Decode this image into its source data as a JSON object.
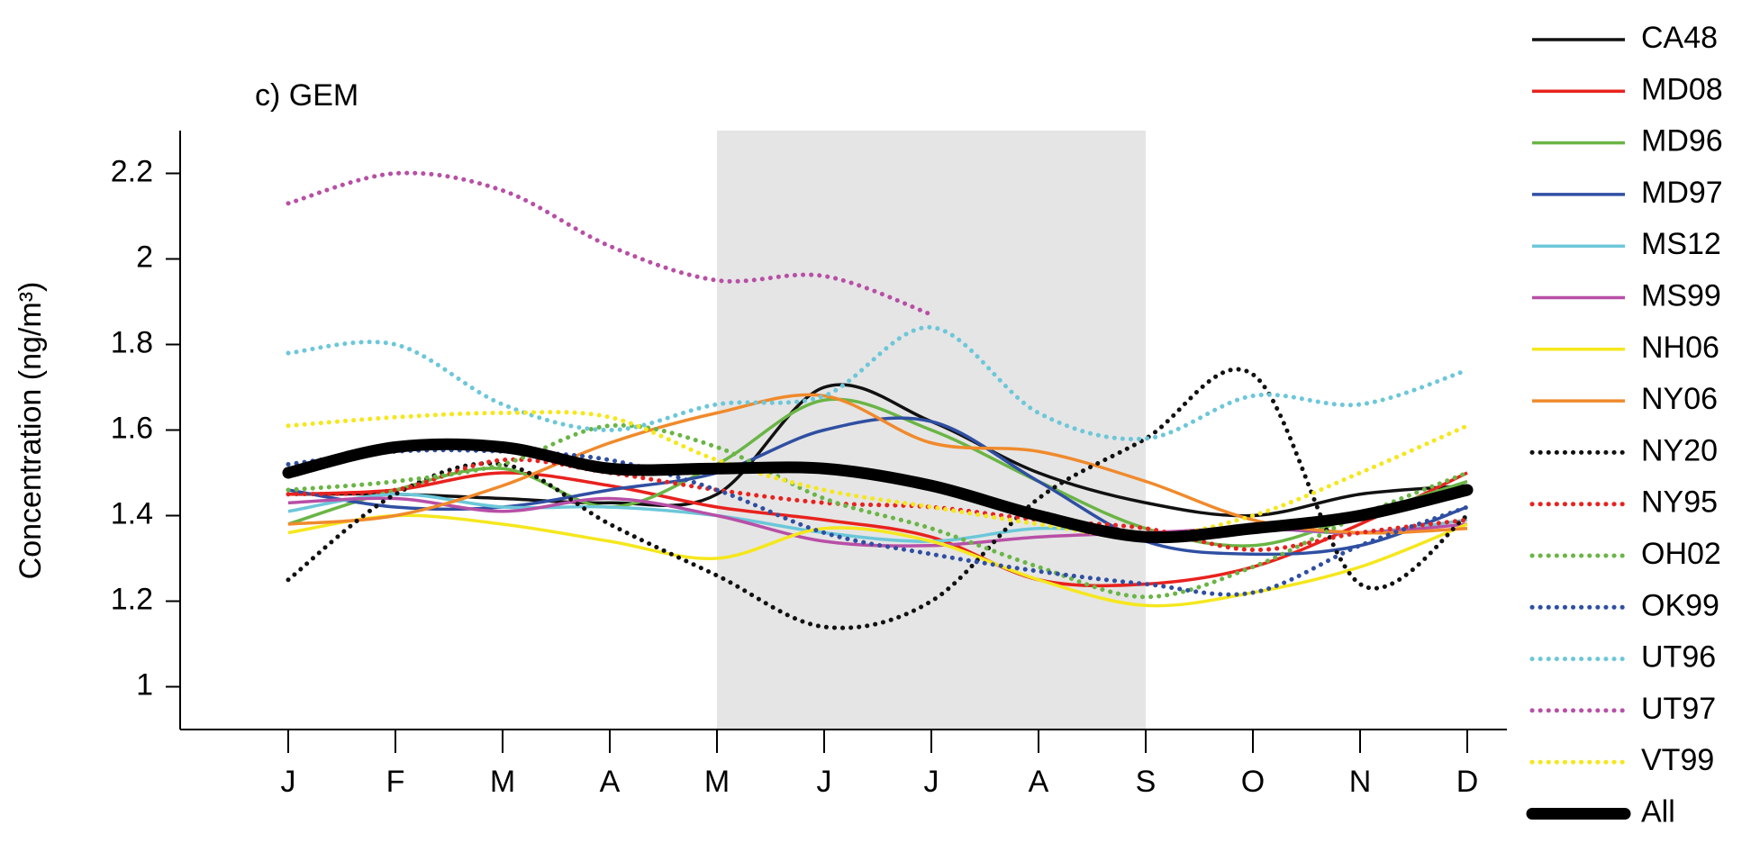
{
  "chart_data": {
    "type": "line",
    "title": "c) GEM",
    "y_label": "Concentration (ng/m³)",
    "categories": [
      "J",
      "F",
      "M",
      "A",
      "M",
      "J",
      "J",
      "A",
      "S",
      "O",
      "N",
      "D"
    ],
    "ylim": [
      0.9,
      2.3
    ],
    "yticks": [
      1.0,
      1.2,
      1.4,
      1.6,
      1.8,
      2.0,
      2.2
    ],
    "shaded": [
      4,
      8
    ],
    "shade_color": "#e5e5e5",
    "legend": "right",
    "series": [
      {
        "name": "CA48",
        "color": "#111111",
        "style": "solid",
        "values": [
          1.45,
          1.45,
          1.44,
          1.43,
          1.45,
          1.7,
          1.62,
          1.5,
          1.43,
          1.4,
          1.45,
          1.47
        ]
      },
      {
        "name": "MD08",
        "color": "#e8221e",
        "style": "solid",
        "values": [
          1.45,
          1.46,
          1.5,
          1.47,
          1.42,
          1.39,
          1.35,
          1.25,
          1.24,
          1.28,
          1.38,
          1.5
        ]
      },
      {
        "name": "MD96",
        "color": "#6ab545",
        "style": "solid",
        "values": [
          1.38,
          1.46,
          1.51,
          1.42,
          1.52,
          1.67,
          1.6,
          1.48,
          1.37,
          1.33,
          1.4,
          1.48
        ]
      },
      {
        "name": "MD97",
        "color": "#2f4fa2",
        "style": "solid",
        "values": [
          1.46,
          1.42,
          1.42,
          1.46,
          1.5,
          1.6,
          1.62,
          1.48,
          1.34,
          1.31,
          1.33,
          1.42
        ]
      },
      {
        "name": "MS12",
        "color": "#6cc7d9",
        "style": "solid",
        "values": [
          1.41,
          1.45,
          1.42,
          1.42,
          1.4,
          1.36,
          1.34,
          1.37,
          1.36,
          1.37,
          1.36,
          1.39
        ]
      },
      {
        "name": "MS99",
        "color": "#b84fa6",
        "style": "solid",
        "values": [
          1.43,
          1.44,
          1.41,
          1.44,
          1.4,
          1.34,
          1.33,
          1.35,
          1.36,
          1.37,
          1.36,
          1.38
        ]
      },
      {
        "name": "NH06",
        "color": "#f5e71d",
        "style": "solid",
        "values": [
          1.36,
          1.4,
          1.38,
          1.34,
          1.3,
          1.37,
          1.34,
          1.25,
          1.19,
          1.22,
          1.28,
          1.38
        ]
      },
      {
        "name": "NY06",
        "color": "#f08a2c",
        "style": "solid",
        "values": [
          1.38,
          1.4,
          1.47,
          1.57,
          1.64,
          1.68,
          1.57,
          1.55,
          1.48,
          1.39,
          1.36,
          1.37
        ]
      },
      {
        "name": "NY20",
        "color": "#111111",
        "style": "dotted",
        "values": [
          1.25,
          1.45,
          1.52,
          1.38,
          1.26,
          1.14,
          1.2,
          1.44,
          1.58,
          1.73,
          1.24,
          1.4
        ]
      },
      {
        "name": "NY95",
        "color": "#e8221e",
        "style": "dotted",
        "values": [
          1.45,
          1.46,
          1.53,
          1.5,
          1.46,
          1.43,
          1.42,
          1.39,
          1.37,
          1.32,
          1.36,
          1.39
        ]
      },
      {
        "name": "OH02",
        "color": "#6ab545",
        "style": "dotted",
        "values": [
          1.46,
          1.48,
          1.52,
          1.61,
          1.56,
          1.44,
          1.37,
          1.28,
          1.21,
          1.28,
          1.4,
          1.5
        ]
      },
      {
        "name": "OK99",
        "color": "#2f4fa2",
        "style": "dotted",
        "values": [
          1.52,
          1.55,
          1.55,
          1.53,
          1.46,
          1.36,
          1.31,
          1.27,
          1.24,
          1.22,
          1.33,
          1.42
        ]
      },
      {
        "name": "UT96",
        "color": "#6cc7d9",
        "style": "dotted",
        "values": [
          1.78,
          1.8,
          1.66,
          1.6,
          1.66,
          1.68,
          1.84,
          1.64,
          1.58,
          1.68,
          1.66,
          1.74
        ]
      },
      {
        "name": "UT97",
        "color": "#b84fa6",
        "style": "dotted",
        "values": [
          2.13,
          2.2,
          2.16,
          2.03,
          1.95,
          1.96,
          1.87,
          null,
          null,
          null,
          null,
          null
        ]
      },
      {
        "name": "VT99",
        "color": "#f5e71d",
        "style": "dotted",
        "values": [
          1.61,
          1.63,
          1.64,
          1.63,
          1.53,
          1.46,
          1.42,
          1.38,
          1.35,
          1.4,
          1.5,
          1.61
        ]
      },
      {
        "name": "All",
        "color": "#000000",
        "style": "bold",
        "values": [
          1.5,
          1.56,
          1.56,
          1.51,
          1.51,
          1.51,
          1.47,
          1.4,
          1.35,
          1.37,
          1.4,
          1.46
        ]
      }
    ]
  }
}
